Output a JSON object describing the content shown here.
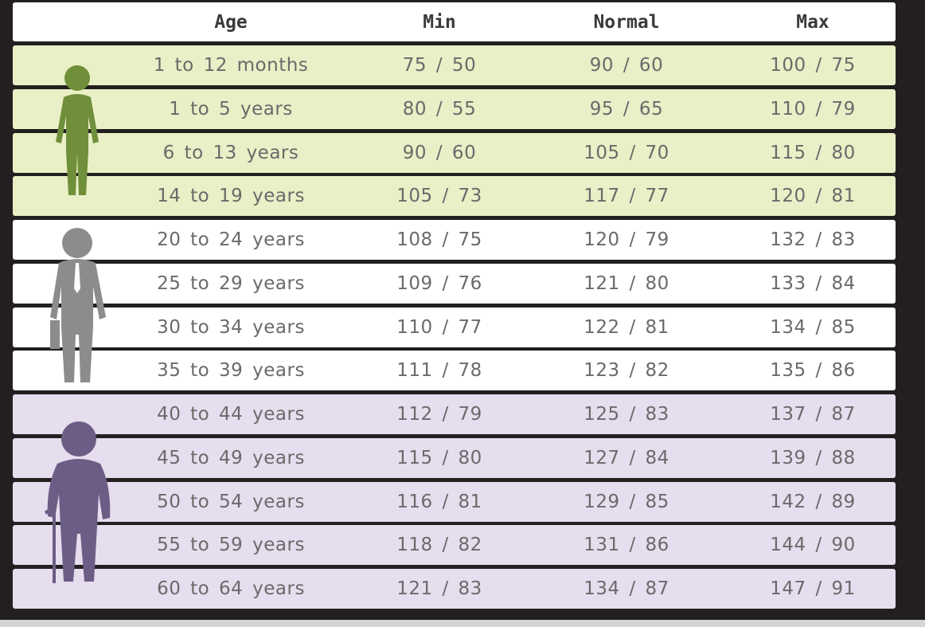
{
  "chart_data": {
    "type": "table",
    "columns": [
      "Age",
      "Min",
      "Normal",
      "Max"
    ],
    "rows": [
      {
        "age": "1 to 12 months",
        "min": "75 / 50",
        "normal": "90 / 60",
        "max": "100 / 75",
        "group": "child"
      },
      {
        "age": "1 to 5 years",
        "min": "80 / 55",
        "normal": "95 / 65",
        "max": "110 / 79",
        "group": "child"
      },
      {
        "age": "6 to 13 years",
        "min": "90 / 60",
        "normal": "105 / 70",
        "max": "115 / 80",
        "group": "child"
      },
      {
        "age": "14 to 19 years",
        "min": "105 / 73",
        "normal": "117 / 77",
        "max": "120 / 81",
        "group": "child"
      },
      {
        "age": "20 to 24 years",
        "min": "108 / 75",
        "normal": "120 / 79",
        "max": "132 / 83",
        "group": "adult"
      },
      {
        "age": "25 to 29 years",
        "min": "109 / 76",
        "normal": "121 / 80",
        "max": "133 / 84",
        "group": "adult"
      },
      {
        "age": "30 to 34 years",
        "min": "110 / 77",
        "normal": "122 / 81",
        "max": "134 / 85",
        "group": "adult"
      },
      {
        "age": "35 to 39 years",
        "min": "111 / 78",
        "normal": "123 / 82",
        "max": "135 / 86",
        "group": "adult"
      },
      {
        "age": "40 to 44 years",
        "min": "112 / 79",
        "normal": "125 / 83",
        "max": "137 / 87",
        "group": "senior"
      },
      {
        "age": "45 to 49 years",
        "min": "115 / 80",
        "normal": "127 / 84",
        "max": "139 / 88",
        "group": "senior"
      },
      {
        "age": "50 to 54 years",
        "min": "116 / 81",
        "normal": "129 / 85",
        "max": "142 / 89",
        "group": "senior"
      },
      {
        "age": "55 to 59 years",
        "min": "118 / 82",
        "normal": "131 / 86",
        "max": "144 / 90",
        "group": "senior"
      },
      {
        "age": "60 to 64 years",
        "min": "121 / 83",
        "normal": "134 / 87",
        "max": "147 / 91",
        "group": "senior"
      }
    ]
  },
  "colors": {
    "background": "#231f20",
    "header_row": "#ffffff",
    "child_row": "#e9efc6",
    "adult_row": "#ffffff",
    "senior_row": "#e6ddee",
    "child_figure": "#6f8f3a",
    "adult_figure": "#8c8c8c",
    "senior_figure": "#6b5d85"
  },
  "icons": {
    "child": "child-figure-icon",
    "adult": "businessman-figure-icon",
    "senior": "elderly-with-cane-figure-icon"
  }
}
